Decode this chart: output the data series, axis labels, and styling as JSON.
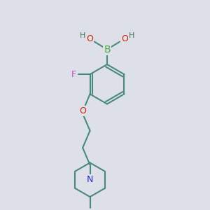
{
  "background_color": "#dde0e8",
  "bond_color": "#4a8a7a",
  "bond_width": 1.5,
  "atom_colors": {
    "B": "#44aa44",
    "O": "#cc2200",
    "H": "#447755",
    "F": "#cc44cc",
    "N": "#2222cc",
    "C": "#4a8a7a"
  },
  "figsize": [
    3.0,
    3.0
  ],
  "dpi": 100
}
